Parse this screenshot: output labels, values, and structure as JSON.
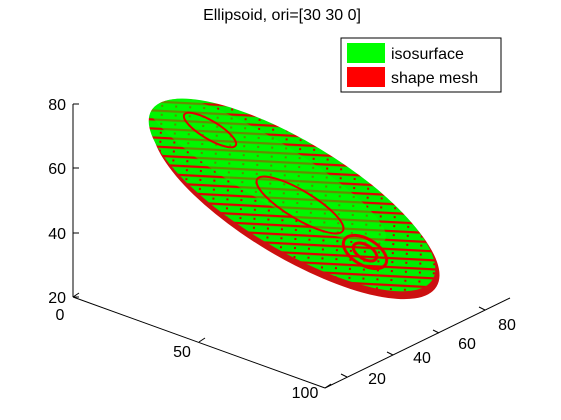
{
  "chart_data": {
    "type": "surface3d",
    "title": "Ellipsoid, ori=[30 30 0]",
    "xlabel": "",
    "ylabel": "",
    "zlabel": "",
    "x_ticks": [
      "0",
      "50",
      "100"
    ],
    "y_ticks": [
      "20",
      "40",
      "60",
      "80"
    ],
    "z_ticks": [
      "20",
      "40",
      "60",
      "80"
    ],
    "xlim": [
      0,
      100
    ],
    "ylim": [
      10,
      90
    ],
    "zlim": [
      20,
      80
    ],
    "grid": false,
    "legend_position": "top-right",
    "series": [
      {
        "name": "isosurface",
        "color": "#00ff00"
      },
      {
        "name": "shape mesh",
        "color": "#ff0000"
      }
    ]
  }
}
